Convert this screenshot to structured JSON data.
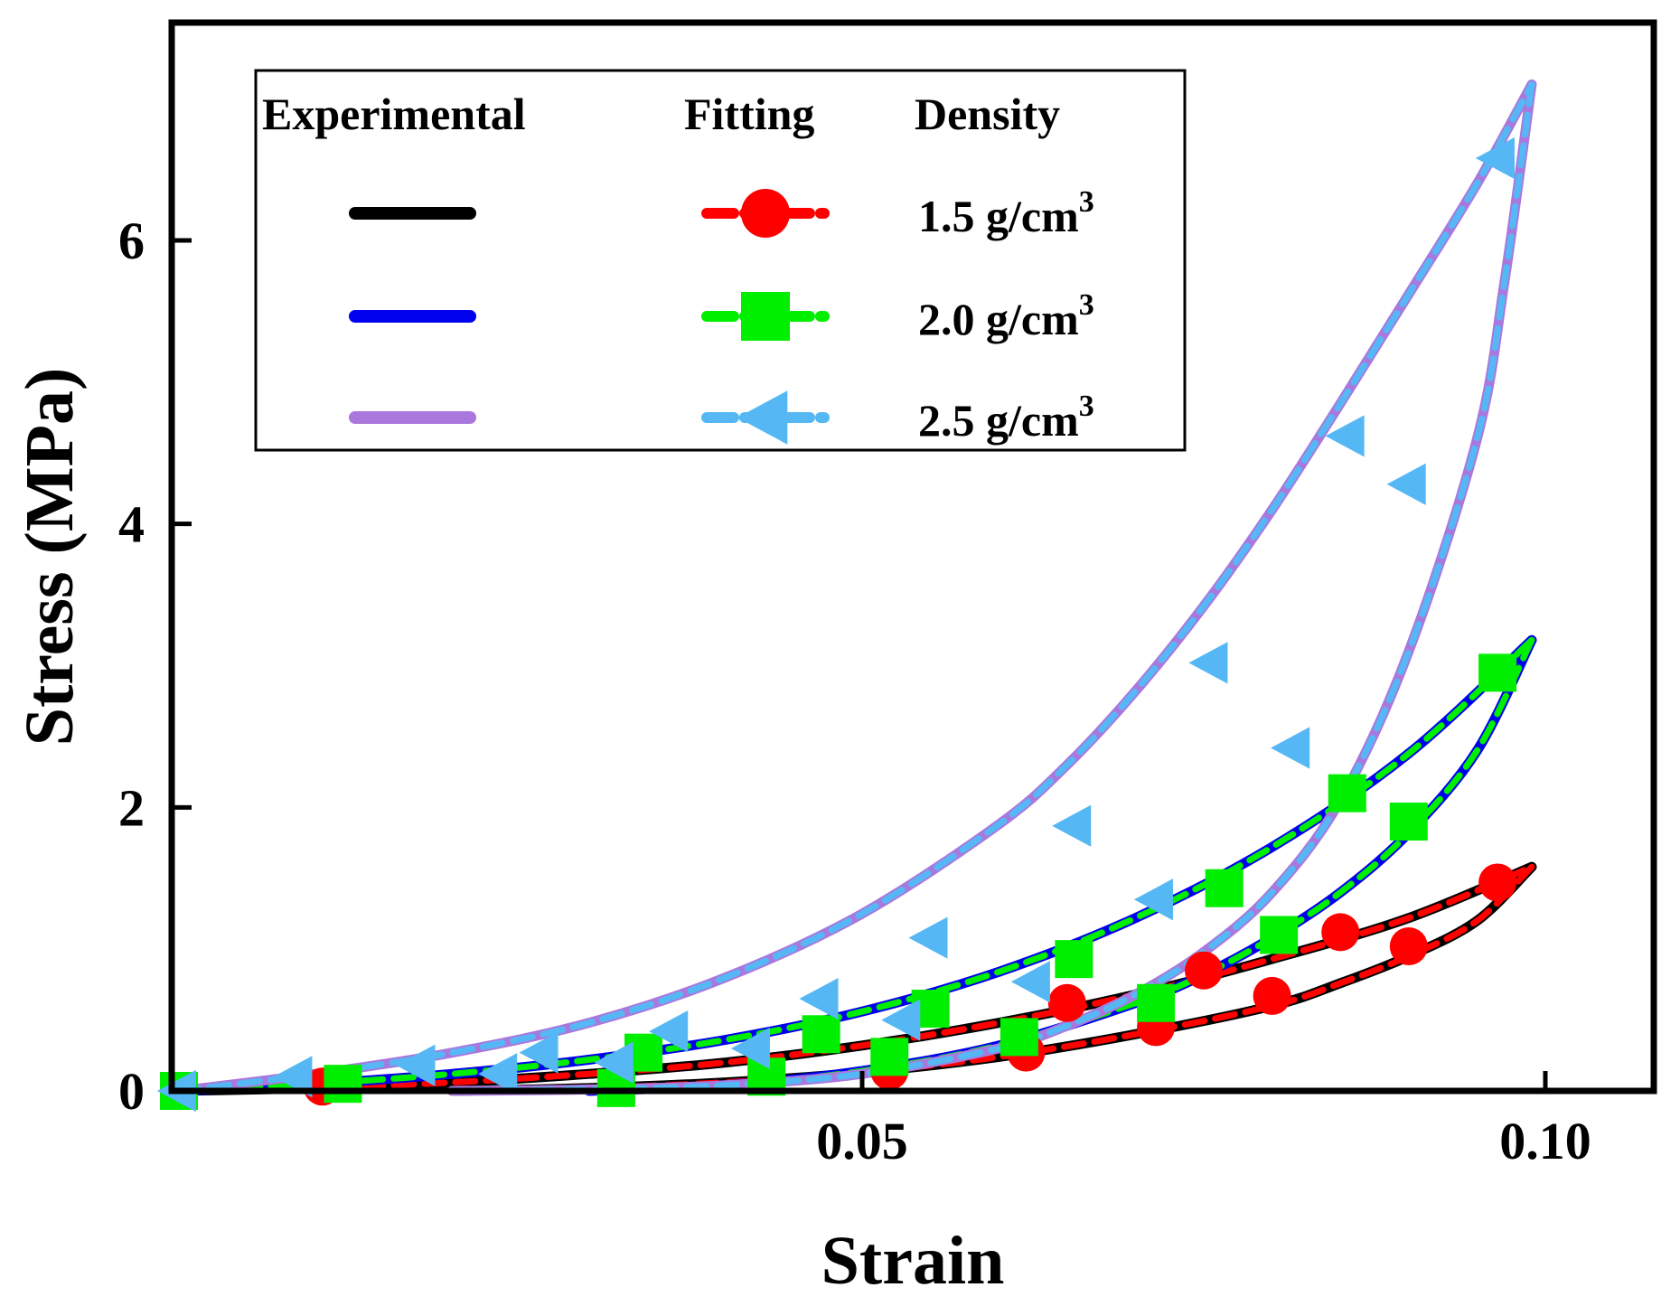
{
  "chart_data": {
    "type": "line",
    "title": "",
    "xlabel": "Strain",
    "ylabel": "Stress (MPa)",
    "xlim": [
      0.0,
      0.11
    ],
    "ylim": [
      0,
      7.5
    ],
    "x_ticks": [
      {
        "value": 0.05,
        "label": "0.05"
      },
      {
        "value": 0.1,
        "label": "0.10"
      }
    ],
    "y_ticks": [
      {
        "value": 0,
        "label": "0"
      },
      {
        "value": 2,
        "label": "2"
      },
      {
        "value": 4,
        "label": "4"
      },
      {
        "value": 6,
        "label": "6"
      }
    ],
    "legend": {
      "placement": "top-left",
      "headers": [
        "Experimental",
        "Fitting",
        "Density"
      ],
      "unit_text": "g/cm",
      "unit_superscript": "3"
    },
    "series": [
      {
        "density": "1.5",
        "experimental_color": "#000000",
        "fitting_color": "#ff0000",
        "fitting_marker": "circle",
        "loading": {
          "x": [
            0.0,
            0.01,
            0.02,
            0.03,
            0.04,
            0.05,
            0.06,
            0.07,
            0.08,
            0.09,
            0.099
          ],
          "y": [
            0.0,
            0.02,
            0.06,
            0.12,
            0.2,
            0.32,
            0.48,
            0.68,
            0.93,
            1.22,
            1.58
          ]
        },
        "unloading": {
          "x": [
            0.099,
            0.095,
            0.09,
            0.085,
            0.08,
            0.07,
            0.06,
            0.05,
            0.04,
            0.03,
            0.02
          ],
          "y": [
            1.58,
            1.2,
            0.95,
            0.76,
            0.6,
            0.4,
            0.24,
            0.13,
            0.06,
            0.02,
            0.0
          ]
        },
        "fit_markers": [
          [
            0.0,
            0.0
          ],
          [
            0.0105,
            0.03
          ],
          [
            0.065,
            0.62
          ],
          [
            0.075,
            0.85
          ],
          [
            0.085,
            1.12
          ],
          [
            0.0965,
            1.47
          ],
          [
            0.09,
            1.02
          ],
          [
            0.08,
            0.67
          ],
          [
            0.0715,
            0.45
          ],
          [
            0.062,
            0.27
          ],
          [
            0.052,
            0.14
          ]
        ]
      },
      {
        "density": "2.0",
        "experimental_color": "#0000ee",
        "fitting_color": "#00ee00",
        "fitting_marker": "square",
        "loading": {
          "x": [
            0.0,
            0.01,
            0.02,
            0.03,
            0.04,
            0.05,
            0.06,
            0.07,
            0.08,
            0.09,
            0.099
          ],
          "y": [
            0.0,
            0.05,
            0.12,
            0.22,
            0.36,
            0.56,
            0.84,
            1.22,
            1.72,
            2.38,
            3.18
          ]
        },
        "unloading": {
          "x": [
            0.099,
            0.095,
            0.09,
            0.085,
            0.08,
            0.075,
            0.07,
            0.06,
            0.05,
            0.04,
            0.03
          ],
          "y": [
            3.18,
            2.4,
            1.82,
            1.4,
            1.08,
            0.82,
            0.62,
            0.32,
            0.14,
            0.04,
            0.0
          ]
        },
        "fit_markers": [
          [
            0.0,
            0.0
          ],
          [
            0.012,
            0.05
          ],
          [
            0.034,
            0.27
          ],
          [
            0.047,
            0.4
          ],
          [
            0.055,
            0.58
          ],
          [
            0.0655,
            0.93
          ],
          [
            0.0765,
            1.43
          ],
          [
            0.0855,
            2.1
          ],
          [
            0.0965,
            2.95
          ],
          [
            0.09,
            1.9
          ],
          [
            0.0805,
            1.1
          ],
          [
            0.0715,
            0.62
          ],
          [
            0.0615,
            0.38
          ],
          [
            0.052,
            0.24
          ],
          [
            0.043,
            0.1
          ],
          [
            0.032,
            0.02
          ]
        ]
      },
      {
        "density": "2.5",
        "experimental_color": "#aa78dd",
        "fitting_color": "#55b8f5",
        "fitting_marker": "triangle-left",
        "loading": {
          "x": [
            0.0,
            0.01,
            0.02,
            0.03,
            0.04,
            0.05,
            0.06,
            0.065,
            0.07,
            0.075,
            0.08,
            0.085,
            0.09,
            0.095,
            0.099
          ],
          "y": [
            0.0,
            0.12,
            0.27,
            0.48,
            0.8,
            1.25,
            1.88,
            2.3,
            2.82,
            3.42,
            4.1,
            4.85,
            5.62,
            6.4,
            7.1
          ]
        },
        "unloading": {
          "x": [
            0.099,
            0.097,
            0.095,
            0.09,
            0.085,
            0.08,
            0.075,
            0.07,
            0.065,
            0.06,
            0.05,
            0.04,
            0.03,
            0.02
          ],
          "y": [
            7.1,
            5.7,
            4.6,
            3.1,
            2.05,
            1.4,
            0.98,
            0.68,
            0.46,
            0.3,
            0.12,
            0.04,
            0.01,
            0.0
          ]
        },
        "fit_markers": [
          [
            0.0,
            0.0
          ],
          [
            0.0085,
            0.1
          ],
          [
            0.0175,
            0.18
          ],
          [
            0.0265,
            0.27
          ],
          [
            0.036,
            0.42
          ],
          [
            0.047,
            0.65
          ],
          [
            0.055,
            1.08
          ],
          [
            0.0655,
            1.87
          ],
          [
            0.0755,
            3.02
          ],
          [
            0.0855,
            4.62
          ],
          [
            0.0965,
            6.58
          ],
          [
            0.09,
            4.28
          ],
          [
            0.0815,
            2.42
          ],
          [
            0.0715,
            1.35
          ],
          [
            0.0625,
            0.77
          ],
          [
            0.053,
            0.5
          ],
          [
            0.042,
            0.3
          ],
          [
            0.032,
            0.2
          ],
          [
            0.0235,
            0.12
          ]
        ]
      }
    ]
  }
}
